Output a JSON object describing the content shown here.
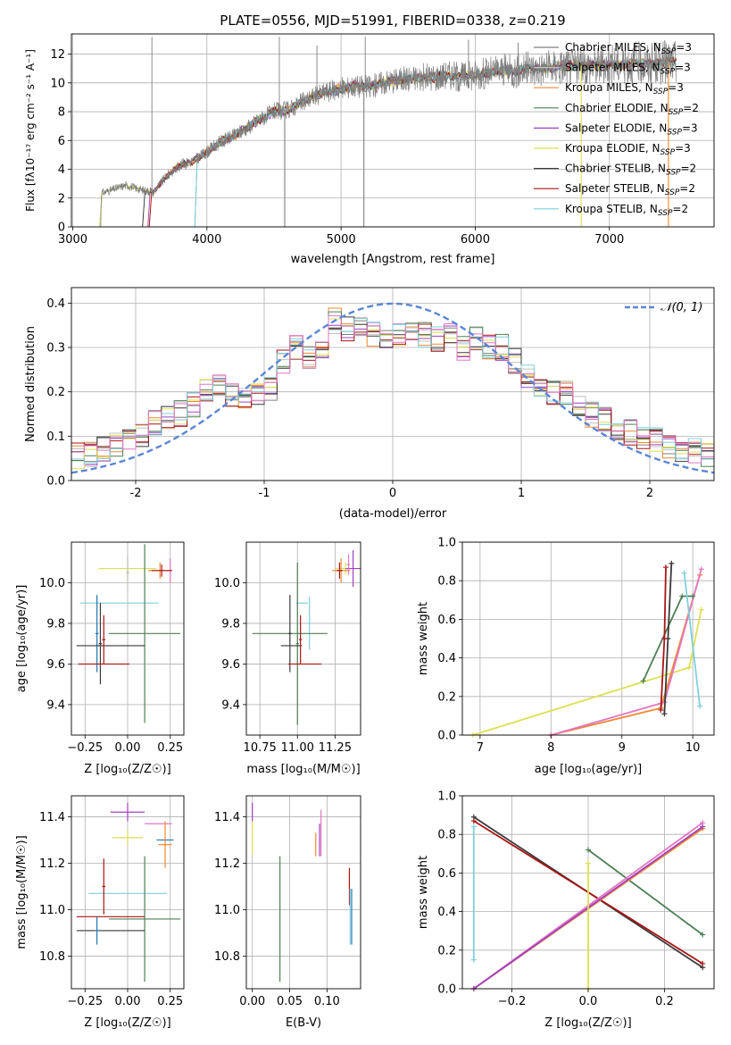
{
  "chart_data": [
    {
      "type": "line",
      "title": "PLATE=0556, MJD=51991, FIBERID=0338, z=0.219",
      "xlabel": "wavelength [Angstrom, rest frame]",
      "ylabel": "Flux [f$_\\lambda$10$^{-17}$ erg cm$^{-2}$ s$^{-1}$ A$^{-1}$]",
      "ylabel_display": "Flux [fλ10⁻¹⁷ erg cm⁻² s⁻¹ A⁻¹]",
      "xlim": [
        2990,
        7780
      ],
      "ylim": [
        0,
        13.4
      ],
      "xticks": [
        3000,
        4000,
        5000,
        6000,
        7000
      ],
      "yticks": [
        0,
        2,
        4,
        6,
        8,
        10,
        12
      ],
      "legend_position": "upper right",
      "series": [
        {
          "name": "Chabrier MILES, N$_{SSP}$=3",
          "label": "Chabrier MILES, N",
          "sub": "SSP",
          "tail": "=3",
          "color": "#7f7f7f"
        },
        {
          "name": "Salpeter MILES, N$_{SSP}$=3",
          "label": "Salpeter MILES, N",
          "sub": "SSP",
          "tail": "=3",
          "color": "#c0c0c0"
        },
        {
          "name": "Kroupa MILES, N$_{SSP}$=3",
          "label": "Kroupa MILES, N",
          "sub": "SSP",
          "tail": "=3",
          "color": "#ee8833"
        },
        {
          "name": "Chabrier ELODIE, N$_{SSP}$=2",
          "label": "Chabrier ELODIE, N",
          "sub": "SSP",
          "tail": "=2",
          "color": "#4d8055"
        },
        {
          "name": "Salpeter ELODIE, N$_{SSP}$=3",
          "label": "Salpeter ELODIE, N",
          "sub": "SSP",
          "tail": "=3",
          "color": "#a040c0"
        },
        {
          "name": "Kroupa ELODIE, N$_{SSP}$=3",
          "label": "Kroupa ELODIE, N",
          "sub": "SSP",
          "tail": "=3",
          "color": "#dde050"
        },
        {
          "name": "Chabrier STELIB, N$_{SSP}$=2",
          "label": "Chabrier STELIB, N",
          "sub": "SSP",
          "tail": "=2",
          "color": "#3a3a3a"
        },
        {
          "name": "Salpeter STELIB, N$_{SSP}$=2",
          "label": "Salpeter STELIB, N",
          "sub": "SSP",
          "tail": "=2",
          "color": "#aa1515"
        },
        {
          "name": "Kroupa STELIB, N$_{SSP}$=2",
          "label": "Kroupa STELIB, N",
          "sub": "SSP",
          "tail": "=2",
          "color": "#7fd0dc"
        }
      ],
      "model_curve": {
        "x": [
          3200,
          3300,
          3400,
          3500,
          3600,
          3700,
          3800,
          3900,
          4000,
          4100,
          4200,
          4300,
          4400,
          4500,
          4600,
          4700,
          4800,
          4900,
          5000,
          5100,
          5200,
          5300,
          5400,
          5500,
          5600,
          5700,
          5800,
          5900,
          6000,
          6100,
          6200,
          6300,
          6400,
          6500,
          6600,
          6700,
          6800,
          6900,
          7000,
          7100,
          7200,
          7300,
          7400,
          7500
        ],
        "y": [
          2.3,
          2.6,
          2.9,
          2.6,
          2.4,
          3.5,
          4.3,
          4.6,
          5.2,
          5.9,
          6.3,
          6.9,
          7.5,
          8.0,
          8.1,
          8.6,
          9.1,
          9.4,
          9.6,
          9.8,
          9.7,
          10.0,
          10.2,
          10.3,
          10.4,
          10.4,
          10.6,
          10.4,
          10.6,
          10.7,
          10.9,
          10.8,
          11.0,
          11.0,
          11.1,
          11.2,
          11.2,
          11.2,
          11.3,
          11.3,
          11.4,
          11.3,
          11.4,
          11.5
        ]
      },
      "model_starts": [
        3200,
        3520,
        3570,
        3910,
        3560
      ],
      "data_spikes": [
        {
          "x": 3590,
          "y": 13.2
        },
        {
          "x": 4540,
          "y": 13.2
        },
        {
          "x": 4820,
          "y": 12.6
        },
        {
          "x": 5180,
          "y": 13.2
        },
        {
          "x": 5950,
          "y": 13.0
        },
        {
          "x": 6320,
          "y": 12.8
        }
      ],
      "data_dips": [
        4580,
        5170,
        6790,
        7440
      ]
    },
    {
      "type": "step-histogram",
      "xlabel": "(data-model)/error",
      "ylabel": "Normed distribution",
      "xlim": [
        -2.5,
        2.5
      ],
      "ylim": [
        0,
        0.435
      ],
      "xticks": [
        -2,
        -1,
        0,
        1,
        2
      ],
      "yticks": [
        0.0,
        0.1,
        0.2,
        0.3,
        0.4
      ],
      "reference_curve": {
        "name": "$\\mathcal{N}(0, 1)$",
        "label": "𝒩(0, 1)",
        "color": "#5b86d6",
        "style": "dashed"
      },
      "bin_width": 0.1,
      "bin_start": -2.5,
      "base_profile": [
        0.055,
        0.06,
        0.065,
        0.07,
        0.08,
        0.085,
        0.09,
        0.1,
        0.12,
        0.13,
        0.14,
        0.15,
        0.15,
        0.17,
        0.19,
        0.2,
        0.21,
        0.19,
        0.19,
        0.18,
        0.17,
        0.2,
        0.21,
        0.24,
        0.27,
        0.3,
        0.29,
        0.28,
        0.3,
        0.32,
        0.36,
        0.34,
        0.36,
        0.34,
        0.33,
        0.32,
        0.32,
        0.33,
        0.33,
        0.35,
        0.33,
        0.32,
        0.32,
        0.33,
        0.3,
        0.32,
        0.32,
        0.3,
        0.3,
        0.3,
        0.27,
        0.26,
        0.24,
        0.22,
        0.2,
        0.2,
        0.2,
        0.18,
        0.17,
        0.15,
        0.14,
        0.14,
        0.12,
        0.12,
        0.11,
        0.1,
        0.1,
        0.09,
        0.08,
        0.08,
        0.07,
        0.07,
        0.06,
        0.06
      ],
      "legend_position": "upper right"
    },
    {
      "type": "errorbar",
      "xlabel": "Z [log$_{10}$(Z/Z$_\\odot$)]",
      "xlabel_display": "Z [log₁₀(Z/Z☉)]",
      "ylabel": "age  [log$_{10}$(age/yr)]",
      "ylabel_display": "age  [log₁₀(age/yr)]",
      "xlim": [
        -0.33,
        0.33
      ],
      "ylim": [
        9.25,
        10.2
      ],
      "xticks": [
        -0.25,
        0.0,
        0.25
      ],
      "xtick_labels": [
        "−0.25",
        "0.00",
        "0.25"
      ],
      "yticks": [
        9.4,
        9.6,
        9.8,
        10.0
      ],
      "points": [
        {
          "x": 0.0,
          "y": 10.07,
          "xerr": 0.17,
          "yerr": 0.06,
          "color": "#dde050"
        },
        {
          "x": 0.19,
          "y": 10.06,
          "xerr": 0.07,
          "yerr": 0.04,
          "color": "#ee8833"
        },
        {
          "x": 0.25,
          "y": 10.06,
          "xerr": 0.01,
          "yerr": 0.06,
          "color": "#e377c2"
        },
        {
          "x": 0.2,
          "y": 10.06,
          "xerr": 0.06,
          "yerr": 0.03,
          "color": "#aa1515"
        },
        {
          "x": 0.0,
          "y": 10.05,
          "xerr": 0.01,
          "yerr": 0.09,
          "color": "#c0c0c0"
        },
        {
          "x": -0.05,
          "y": 9.9,
          "xerr": 0.23,
          "yerr": 0.0,
          "color": "#7fd0dc"
        },
        {
          "x": -0.18,
          "y": 9.75,
          "xerr": 0.01,
          "yerr": 0.19,
          "color": "#1f77b4"
        },
        {
          "x": 0.1,
          "y": 9.75,
          "xerr": 0.21,
          "yerr": 0.44,
          "color": "#4d8055"
        },
        {
          "x": -0.1,
          "y": 9.69,
          "xerr": 0.2,
          "yerr": 0.0,
          "color": "#3a3a3a"
        },
        {
          "x": -0.16,
          "y": 9.7,
          "xerr": 0.01,
          "yerr": 0.2,
          "color": "#3a3a3a"
        },
        {
          "x": -0.14,
          "y": 9.6,
          "xerr": 0.15,
          "yerr": 0.0,
          "color": "#aa1515"
        },
        {
          "x": -0.14,
          "y": 9.72,
          "xerr": 0.01,
          "yerr": 0.12,
          "color": "#aa1515"
        }
      ]
    },
    {
      "type": "errorbar",
      "xlabel": "mass [log$_{10}$(M/M$_\\odot$)]",
      "xlabel_display": "mass [log₁₀(M/M☉)]",
      "xlim": [
        10.66,
        11.42
      ],
      "ylim": [
        9.25,
        10.2
      ],
      "xticks": [
        10.75,
        11.0,
        11.25
      ],
      "xtick_labels": [
        "10.75",
        "11.00",
        "11.25"
      ],
      "yticks": [
        9.4,
        9.6,
        9.8,
        10.0
      ],
      "points": [
        {
          "x": 11.32,
          "y": 10.07,
          "xerr": 0.07,
          "yerr": 0.03,
          "color": "#dde050"
        },
        {
          "x": 11.29,
          "y": 10.06,
          "xerr": 0.06,
          "yerr": 0.06,
          "color": "#ee8833"
        },
        {
          "x": 11.37,
          "y": 10.07,
          "xerr": 0.05,
          "yerr": 0.09,
          "color": "#a040c0"
        },
        {
          "x": 11.28,
          "y": 10.06,
          "xerr": 0.02,
          "yerr": 0.04,
          "color": "#aa1515"
        },
        {
          "x": 11.34,
          "y": 10.09,
          "xerr": 0.01,
          "yerr": 0.05,
          "color": "#e377c2"
        },
        {
          "x": 11.03,
          "y": 9.9,
          "xerr": 0.04,
          "yerr": 0.0,
          "color": "#7fd0dc"
        },
        {
          "x": 11.08,
          "y": 9.8,
          "xerr": 0.01,
          "yerr": 0.13,
          "color": "#7fd0dc"
        },
        {
          "x": 10.95,
          "y": 9.75,
          "xerr": 0.25,
          "yerr": 0.0,
          "color": "#4d8055"
        },
        {
          "x": 11.0,
          "y": 9.7,
          "xerr": 0.01,
          "yerr": 0.4,
          "color": "#4d8055"
        },
        {
          "x": 10.96,
          "y": 9.69,
          "xerr": 0.07,
          "yerr": 0.0,
          "color": "#3a3a3a"
        },
        {
          "x": 10.95,
          "y": 9.75,
          "xerr": 0.01,
          "yerr": 0.19,
          "color": "#3a3a3a"
        },
        {
          "x": 11.05,
          "y": 9.6,
          "xerr": 0.11,
          "yerr": 0.0,
          "color": "#aa1515"
        },
        {
          "x": 11.02,
          "y": 9.72,
          "xerr": 0.01,
          "yerr": 0.12,
          "color": "#aa1515"
        }
      ]
    },
    {
      "type": "line",
      "xlabel": "age  [log$_{10}$(age/yr)]",
      "xlabel_display": "age  [log₁₀(age/yr)]",
      "ylabel": "mass weight",
      "xlim": [
        6.75,
        10.3
      ],
      "ylim": [
        0,
        1.0
      ],
      "xticks": [
        7,
        8,
        9,
        10
      ],
      "yticks": [
        0.0,
        0.2,
        0.4,
        0.6,
        0.8,
        1.0
      ],
      "series": [
        {
          "color": "#dde050",
          "x": [
            6.9,
            9.95,
            10.12
          ],
          "y": [
            0.0,
            0.35,
            0.65
          ]
        },
        {
          "color": "#ee8833",
          "x": [
            8.0,
            9.55,
            10.1
          ],
          "y": [
            0.0,
            0.14,
            0.83
          ]
        },
        {
          "color": "#e377c2",
          "x": [
            8.0,
            9.6,
            10.12
          ],
          "y": [
            0.0,
            0.17,
            0.86
          ]
        },
        {
          "color": "#4d8055",
          "x": [
            9.3,
            9.85,
            10.0
          ],
          "y": [
            0.28,
            0.72,
            0.72
          ]
        },
        {
          "color": "#3a3a3a",
          "x": [
            9.6,
            9.65,
            9.7
          ],
          "y": [
            0.11,
            0.5,
            0.89
          ]
        },
        {
          "color": "#aa1515",
          "x": [
            9.55,
            9.6,
            9.62
          ],
          "y": [
            0.13,
            0.5,
            0.87
          ]
        },
        {
          "color": "#7fd0dc",
          "x": [
            9.88,
            10.1
          ],
          "y": [
            0.84,
            0.15
          ]
        }
      ]
    },
    {
      "type": "errorbar",
      "xlabel": "Z [log$_{10}$(Z/Z$_\\odot$)]",
      "xlabel_display": "Z [log₁₀(Z/Z☉)]",
      "ylabel": "mass [log$_{10}$(M/M$_\\odot$)]",
      "ylabel_display": "mass [log₁₀(M/M☉)]",
      "xlim": [
        -0.33,
        0.33
      ],
      "ylim": [
        10.66,
        11.49
      ],
      "xticks": [
        -0.25,
        0.0,
        0.25
      ],
      "xtick_labels": [
        "−0.25",
        "0.00",
        "0.25"
      ],
      "yticks": [
        10.8,
        11.0,
        11.2,
        11.4
      ],
      "points": [
        {
          "x": 0.0,
          "y": 11.42,
          "xerr": 0.1,
          "yerr": 0.04,
          "color": "#a040c0"
        },
        {
          "x": 0.18,
          "y": 11.37,
          "xerr": 0.08,
          "yerr": 0.0,
          "color": "#e377c2"
        },
        {
          "x": 0.0,
          "y": 11.31,
          "xerr": 0.09,
          "yerr": 0.03,
          "color": "#dde050"
        },
        {
          "x": 0.22,
          "y": 11.3,
          "xerr": 0.05,
          "yerr": 0.0,
          "color": "#1f77b4"
        },
        {
          "x": 0.22,
          "y": 11.28,
          "xerr": 0.04,
          "yerr": 0.1,
          "color": "#ee8833"
        },
        {
          "x": 0.0,
          "y": 11.07,
          "xerr": 0.23,
          "yerr": 0.0,
          "color": "#7fd0dc"
        },
        {
          "x": -0.14,
          "y": 11.1,
          "xerr": 0.01,
          "yerr": 0.12,
          "color": "#aa1515"
        },
        {
          "x": 0.1,
          "y": 10.96,
          "xerr": 0.21,
          "yerr": 0.27,
          "color": "#4d8055"
        },
        {
          "x": -0.1,
          "y": 10.97,
          "xerr": 0.2,
          "yerr": 0.0,
          "color": "#aa1515"
        },
        {
          "x": -0.1,
          "y": 10.91,
          "xerr": 0.2,
          "yerr": 0.0,
          "color": "#3a3a3a"
        },
        {
          "x": -0.18,
          "y": 10.91,
          "xerr": 0.01,
          "yerr": 0.06,
          "color": "#1f77b4"
        }
      ]
    },
    {
      "type": "errorbar",
      "xlabel": "E(B-V)",
      "xlim": [
        -0.008,
        0.145
      ],
      "ylim": [
        10.66,
        11.49
      ],
      "xticks": [
        0.0,
        0.05,
        0.1
      ],
      "xtick_labels": [
        "0.00",
        "0.05",
        "0.10"
      ],
      "yticks": [
        10.8,
        11.0,
        11.2,
        11.4
      ],
      "points": [
        {
          "x": 0.0,
          "y": 11.42,
          "xerr": 0,
          "yerr": 0.04,
          "color": "#a040c0"
        },
        {
          "x": 0.0,
          "y": 11.31,
          "xerr": 0,
          "yerr": 0.07,
          "color": "#dde050"
        },
        {
          "x": 0.037,
          "y": 10.96,
          "xerr": 0,
          "yerr": 0.27,
          "color": "#4d8055"
        },
        {
          "x": 0.085,
          "y": 11.28,
          "xerr": 0,
          "yerr": 0.05,
          "color": "#ee8833"
        },
        {
          "x": 0.09,
          "y": 11.3,
          "xerr": 0,
          "yerr": 0.07,
          "color": "#a040c0"
        },
        {
          "x": 0.092,
          "y": 11.33,
          "xerr": 0,
          "yerr": 0.1,
          "color": "#e377c2"
        },
        {
          "x": 0.13,
          "y": 11.1,
          "xerr": 0,
          "yerr": 0.08,
          "color": "#aa1515"
        },
        {
          "x": 0.131,
          "y": 10.97,
          "xerr": 0,
          "yerr": 0.12,
          "color": "#7fd0dc"
        },
        {
          "x": 0.133,
          "y": 10.97,
          "xerr": 0,
          "yerr": 0.12,
          "color": "#1f77b4"
        }
      ]
    },
    {
      "type": "line",
      "xlabel": "Z [log$_{10}$(Z/Z$_\\odot$)]",
      "xlabel_display": "Z [log₁₀(Z/Z☉)]",
      "ylabel": "mass weight",
      "xlim": [
        -0.33,
        0.33
      ],
      "ylim": [
        0,
        1.0
      ],
      "xticks": [
        -0.2,
        0.0,
        0.2
      ],
      "xtick_labels": [
        "−0.2",
        "0.0",
        "0.2"
      ],
      "yticks": [
        0.0,
        0.2,
        0.4,
        0.6,
        0.8,
        1.0
      ],
      "series": [
        {
          "color": "#3a3a3a",
          "x": [
            -0.3,
            0.3
          ],
          "y": [
            0.89,
            0.11
          ]
        },
        {
          "color": "#aa1515",
          "x": [
            -0.3,
            0.3
          ],
          "y": [
            0.87,
            0.13
          ]
        },
        {
          "color": "#4d8055",
          "x": [
            0.0,
            0.3
          ],
          "y": [
            0.72,
            0.28
          ]
        },
        {
          "color": "#e377c2",
          "x": [
            -0.3,
            0.3
          ],
          "y": [
            0.0,
            0.86
          ]
        },
        {
          "color": "#ee8833",
          "x": [
            -0.3,
            0.3
          ],
          "y": [
            0.0,
            0.83
          ]
        },
        {
          "color": "#a040c0",
          "x": [
            -0.3,
            0.3
          ],
          "y": [
            0.0,
            0.84
          ]
        },
        {
          "color": "#dde050",
          "x": [
            0.0,
            0.0
          ],
          "y": [
            0.0,
            0.65
          ]
        },
        {
          "color": "#7fd0dc",
          "x": [
            -0.3,
            -0.3
          ],
          "y": [
            0.15,
            0.84
          ]
        }
      ]
    }
  ]
}
